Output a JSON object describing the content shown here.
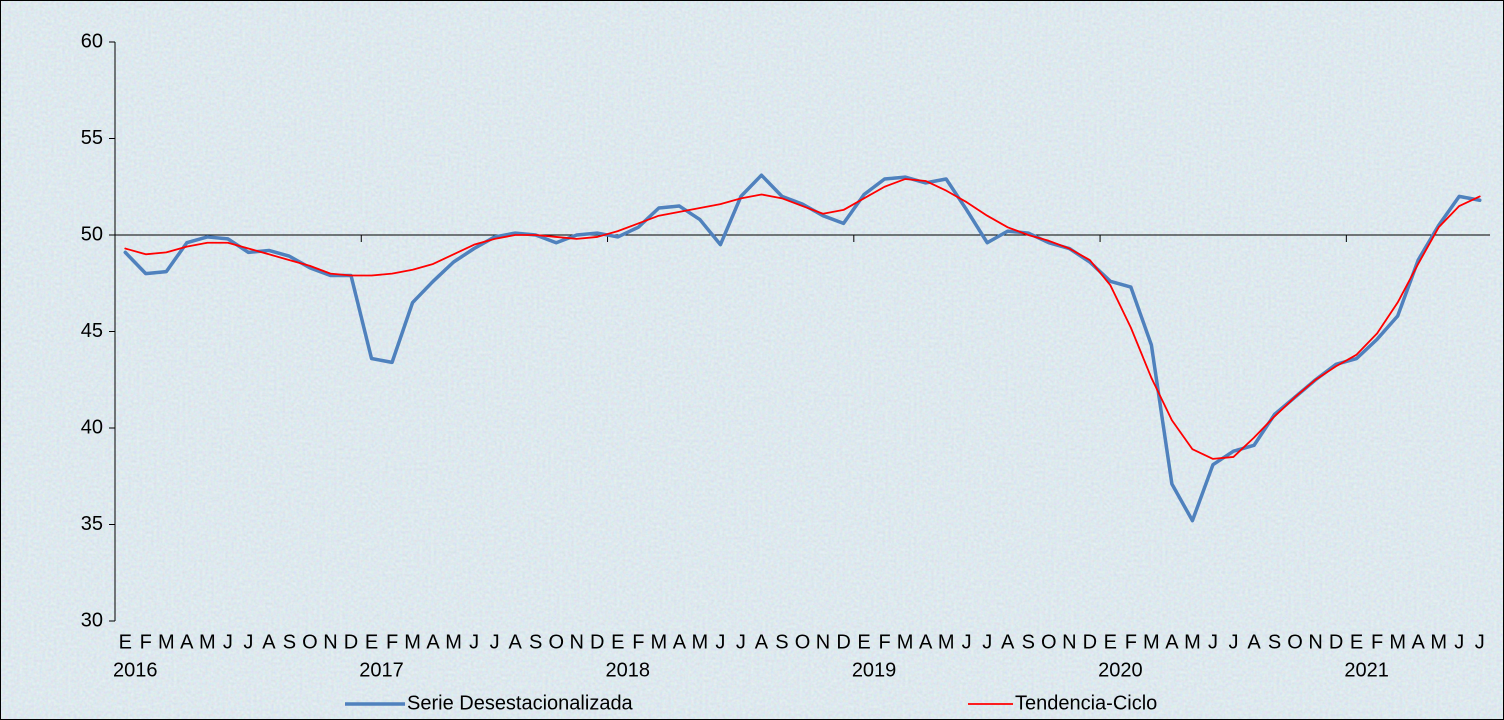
{
  "chart_data": {
    "type": "line",
    "categories": [
      "E",
      "F",
      "M",
      "A",
      "M",
      "J",
      "J",
      "A",
      "S",
      "O",
      "N",
      "D",
      "E",
      "F",
      "M",
      "A",
      "M",
      "J",
      "J",
      "A",
      "S",
      "O",
      "N",
      "D",
      "E",
      "F",
      "M",
      "A",
      "M",
      "J",
      "J",
      "A",
      "S",
      "O",
      "N",
      "D",
      "E",
      "F",
      "M",
      "A",
      "M",
      "J",
      "J",
      "A",
      "S",
      "O",
      "N",
      "D",
      "E",
      "F",
      "M",
      "A",
      "M",
      "J",
      "J",
      "A",
      "S",
      "O",
      "N",
      "D",
      "E",
      "F",
      "M",
      "A",
      "M",
      "J",
      "J"
    ],
    "years": [
      "2016",
      "2017",
      "2018",
      "2019",
      "2020",
      "2021"
    ],
    "series": [
      {
        "name": "Serie Desestacionalizada",
        "color": "#4f81bd",
        "width": 3.5,
        "values": [
          49.1,
          48.0,
          48.1,
          49.6,
          49.9,
          49.8,
          49.1,
          49.2,
          48.9,
          48.3,
          47.9,
          47.9,
          43.6,
          43.4,
          46.5,
          47.6,
          48.6,
          49.3,
          49.9,
          50.1,
          50.0,
          49.6,
          50.0,
          50.1,
          49.9,
          50.4,
          51.4,
          51.5,
          50.8,
          49.5,
          52.0,
          53.1,
          52.0,
          51.6,
          51.0,
          50.6,
          52.1,
          52.9,
          53.0,
          52.7,
          52.9,
          51.3,
          49.6,
          50.2,
          50.1,
          49.6,
          49.3,
          48.6,
          47.6,
          47.3,
          44.3,
          37.1,
          35.2,
          38.1,
          38.8,
          39.1,
          40.7,
          41.6,
          42.5,
          43.3,
          43.6,
          44.6,
          45.8,
          48.7,
          50.5,
          52.0,
          51.8
        ]
      },
      {
        "name": "Tendencia-Ciclo",
        "color": "#ff0000",
        "width": 1.8,
        "values": [
          49.3,
          49.0,
          49.1,
          49.4,
          49.6,
          49.6,
          49.3,
          49.0,
          48.7,
          48.4,
          48.0,
          47.9,
          47.9,
          48.0,
          48.2,
          48.5,
          49.0,
          49.5,
          49.8,
          50.0,
          50.0,
          49.9,
          49.8,
          49.9,
          50.2,
          50.6,
          51.0,
          51.2,
          51.4,
          51.6,
          51.9,
          52.1,
          51.9,
          51.5,
          51.1,
          51.3,
          51.9,
          52.5,
          52.9,
          52.8,
          52.3,
          51.7,
          51.0,
          50.4,
          50.0,
          49.7,
          49.3,
          48.7,
          47.4,
          45.2,
          42.6,
          40.4,
          38.9,
          38.4,
          38.5,
          39.5,
          40.6,
          41.6,
          42.5,
          43.2,
          43.8,
          44.9,
          46.5,
          48.5,
          50.4,
          51.5,
          52.0
        ]
      }
    ],
    "ylim": [
      30,
      60
    ],
    "yticks": [
      30,
      35,
      40,
      45,
      50,
      55,
      60
    ],
    "x_axis_crossing": 50,
    "grid": false,
    "legend": "bottom"
  }
}
